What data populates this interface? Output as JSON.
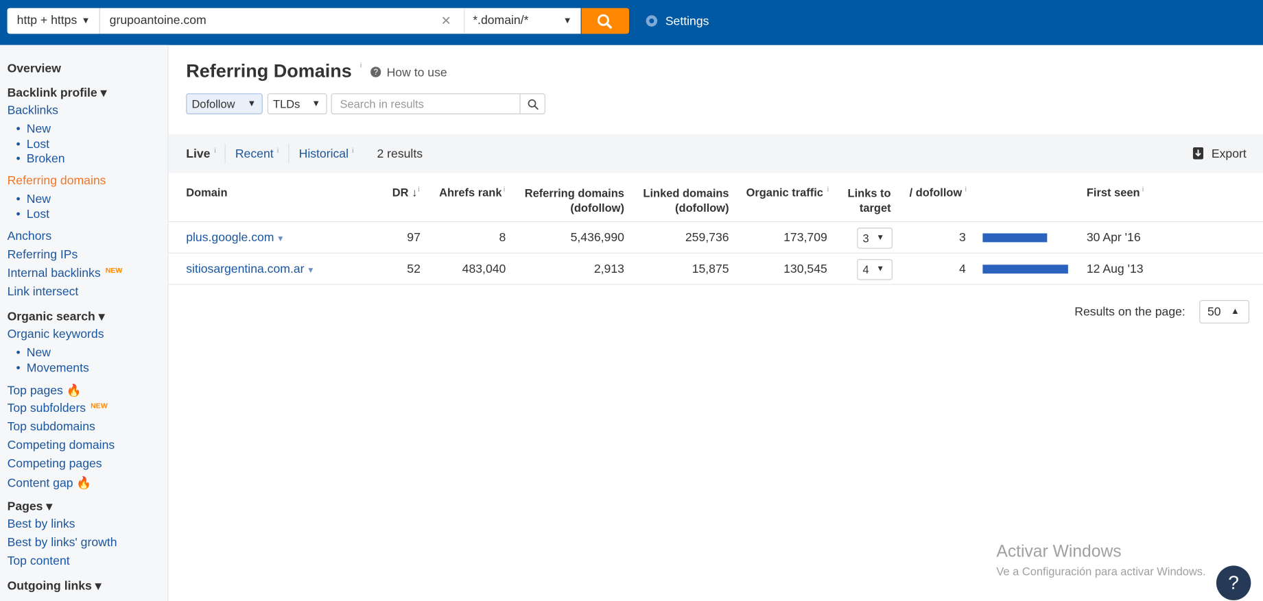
{
  "topbar": {
    "protocol": "http + https",
    "url": "grupoantoine.com",
    "mode": "*.domain/*",
    "settings": "Settings"
  },
  "sidebar": {
    "overview": "Overview",
    "backlink_profile": {
      "title": "Backlink profile",
      "backlinks": "Backlinks",
      "backlinks_sub": [
        "New",
        "Lost",
        "Broken"
      ],
      "referring_domains": "Referring domains",
      "referring_sub": [
        "New",
        "Lost"
      ],
      "links": [
        "Anchors",
        "Referring IPs",
        "Internal backlinks",
        "Link intersect"
      ],
      "badge": "NEW"
    },
    "organic_search": {
      "title": "Organic search",
      "organic_keywords": "Organic keywords",
      "keywords_sub": [
        "New",
        "Movements"
      ],
      "links": [
        "Top pages",
        "Top subfolders",
        "Top subdomains",
        "Competing domains",
        "Competing pages",
        "Content gap"
      ],
      "badge": "NEW"
    },
    "pages": {
      "title": "Pages",
      "links": [
        "Best by links",
        "Best by links' growth",
        "Top content"
      ]
    },
    "outgoing": {
      "title": "Outgoing links"
    }
  },
  "header": {
    "title": "Referring Domains",
    "info": "i",
    "how_to_use": "How to use"
  },
  "filters": {
    "dofollow": "Dofollow",
    "tlds": "TLDs",
    "search_placeholder": "Search in results"
  },
  "tabs": {
    "items": [
      "Live",
      "Recent",
      "Historical"
    ],
    "results": "2 results",
    "export": "Export"
  },
  "table": {
    "headers": [
      "Domain",
      "DR",
      "Ahrefs rank",
      "Referring domains (dofollow)",
      "Linked domains (dofollow)",
      "Organic traffic",
      "Links to target",
      "/ dofollow",
      "First seen"
    ],
    "rows": [
      {
        "domain": "plus.google.com",
        "dr": 97,
        "ahrefs_rank": 8,
        "referring_domains": "5,436,990",
        "linked_domains": "259,736",
        "organic_traffic": "173,709",
        "links_to_target": 3,
        "dofollow": 3,
        "first_seen": "30 Apr '16"
      },
      {
        "domain": "sitiosargentina.com.ar",
        "dr": 52,
        "ahrefs_rank": "483,040",
        "referring_domains": "2,913",
        "linked_domains": "15,875",
        "organic_traffic": "130,545",
        "links_to_target": 4,
        "dofollow": 4,
        "first_seen": "12 Aug '13"
      }
    ]
  },
  "pagination": {
    "label": "Results on the page:",
    "value": 50
  },
  "watermark": {
    "title": "Activar Windows",
    "subtitle": "Ve a Configuración para activar Windows."
  },
  "help": "?"
}
